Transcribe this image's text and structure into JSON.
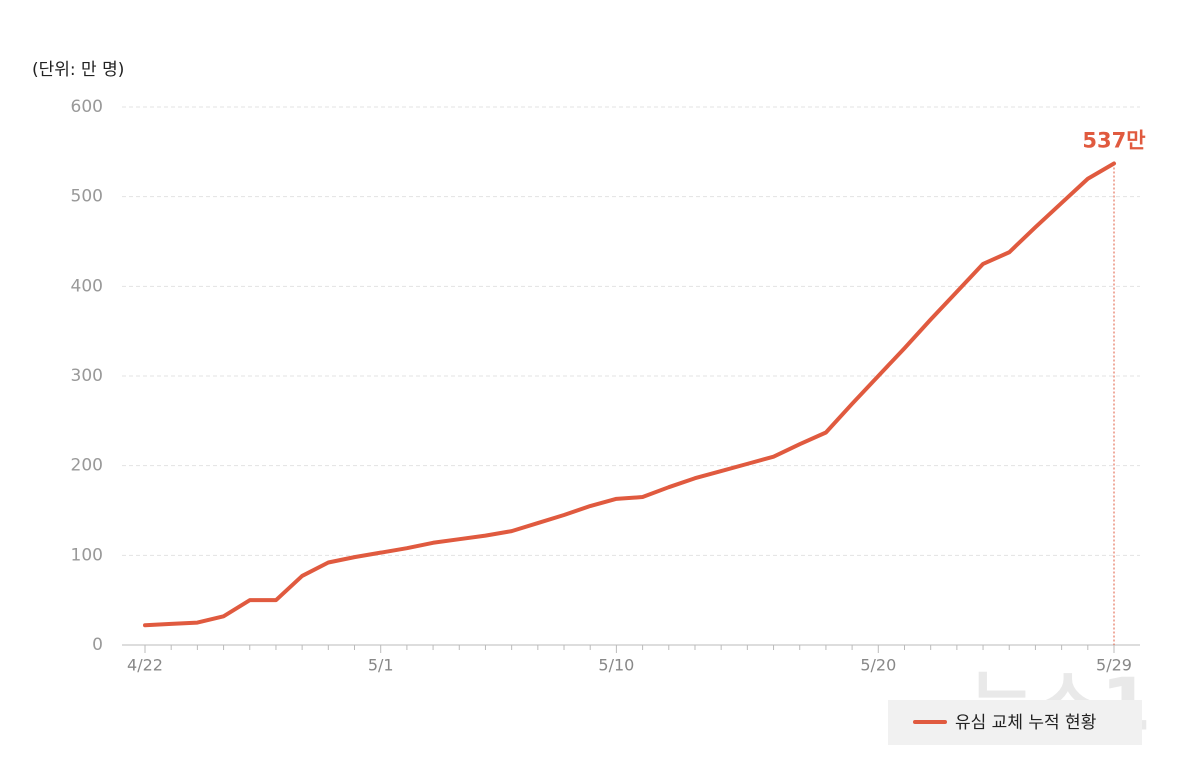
{
  "chart_data": {
    "type": "line",
    "y_unit_label": "(단위: 만 명)",
    "categories": [
      "4/22",
      null,
      null,
      null,
      null,
      null,
      null,
      null,
      null,
      "5/1",
      null,
      null,
      null,
      null,
      null,
      null,
      null,
      null,
      "5/10",
      null,
      null,
      null,
      null,
      null,
      null,
      null,
      null,
      null,
      "5/20",
      null,
      null,
      null,
      null,
      null,
      null,
      null,
      null,
      "5/29"
    ],
    "series": [
      {
        "name": "유심 교체 누적 현황",
        "color": "#e05a3f",
        "values": [
          22,
          23.5,
          25,
          32,
          50,
          50,
          77,
          92,
          98,
          103,
          108,
          114,
          118,
          122,
          127,
          136,
          145,
          155,
          163,
          165,
          176,
          186,
          194,
          202,
          210,
          224,
          237,
          269,
          300,
          331,
          363,
          394,
          425,
          438,
          466,
          493,
          520,
          537
        ]
      }
    ],
    "annotation": "537만",
    "ylim": [
      0,
      600
    ],
    "yticks": [
      0,
      100,
      200,
      300,
      400,
      500,
      600
    ],
    "grid": true,
    "watermark": "뉴스1"
  }
}
